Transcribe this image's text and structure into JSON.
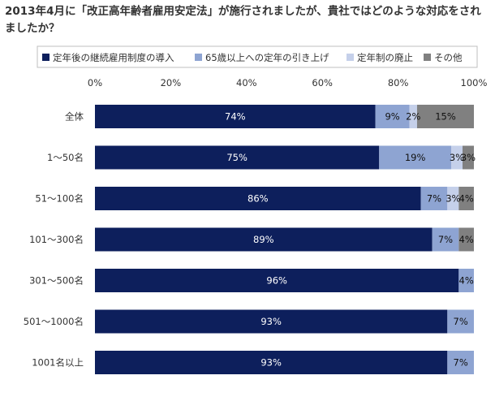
{
  "chart_data": {
    "type": "bar",
    "orientation": "horizontal",
    "stacked": true,
    "title": "2013年4月に「改正高年齢者雇用安定法」が施行されましたが、貴社ではどのような対応をされましたか？",
    "categories": [
      "全体",
      "1～50名",
      "51～100名",
      "101～300名",
      "301～500名",
      "501～1000名",
      "1001名以上"
    ],
    "series": [
      {
        "name": "定年後の継続雇用制度の導入",
        "color": "#0d1f5c",
        "values": [
          74,
          75,
          86,
          89,
          96,
          93,
          93
        ],
        "labels": [
          "74%",
          "75%",
          "86%",
          "89%",
          "96%",
          "93%",
          "93%"
        ]
      },
      {
        "name": "65歳以上への定年の引き上げ",
        "color": "#8ea4d2",
        "values": [
          9,
          19,
          7,
          7,
          4,
          7,
          7
        ],
        "labels": [
          "9%",
          "19%",
          "7%",
          "7%",
          "4%",
          "7%",
          "7%"
        ]
      },
      {
        "name": "定年制の廃止",
        "color": "#c5d0ea",
        "values": [
          2,
          3,
          3,
          0,
          0,
          0,
          0
        ],
        "labels": [
          "2%",
          "3%",
          "3%",
          "",
          "",
          "",
          ""
        ]
      },
      {
        "name": "その他",
        "color": "#808080",
        "values": [
          15,
          3,
          4,
          4,
          0,
          0,
          0
        ],
        "labels": [
          "15%",
          "3%",
          "4%",
          "4%",
          "",
          "",
          ""
        ]
      }
    ],
    "xlim": [
      0,
      100
    ],
    "xticks": [
      "0%",
      "20%",
      "40%",
      "60%",
      "80%",
      "100%"
    ],
    "legend_position": "top",
    "grid": false
  }
}
